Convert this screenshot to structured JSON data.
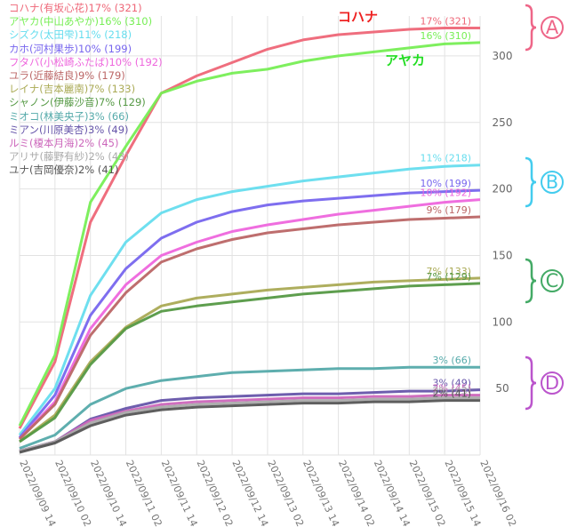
{
  "chart_data": {
    "type": "line",
    "x": [
      "2022/09/09 14",
      "2022/09/10 02",
      "2022/09/10 14",
      "2022/09/11 02",
      "2022/09/11 14",
      "2022/09/12 02",
      "2022/09/12 14",
      "2022/09/13 02",
      "2022/09/13 14",
      "2022/09/14 02",
      "2022/09/14 14",
      "2022/09/15 02",
      "2022/09/15 14",
      "2022/09/16 02"
    ],
    "ylim": [
      0,
      330
    ],
    "yticks": [
      50,
      100,
      150,
      200,
      250,
      300
    ],
    "grid": true,
    "series": [
      {
        "legend": "コハナ(有坂心花)17% (321)",
        "end_label": "17% (321)",
        "color": "#ee6677",
        "values": [
          20,
          70,
          175,
          225,
          272,
          285,
          295,
          305,
          312,
          316,
          318,
          320,
          321,
          321
        ]
      },
      {
        "legend": "アヤカ(中山あやか)16% (310)",
        "end_label": "16% (310)",
        "color": "#77ee55",
        "values": [
          22,
          75,
          190,
          232,
          272,
          281,
          287,
          290,
          296,
          300,
          303,
          306,
          309,
          310
        ]
      },
      {
        "legend": "シズク(太田雫)11% (218)",
        "end_label": "11% (218)",
        "color": "#66ddee",
        "values": [
          15,
          50,
          120,
          160,
          182,
          192,
          198,
          202,
          206,
          209,
          212,
          215,
          217,
          218
        ]
      },
      {
        "legend": "カホ(河村果歩)10% (199)",
        "end_label": "10% (199)",
        "color": "#7766ee",
        "values": [
          13,
          45,
          105,
          140,
          163,
          175,
          183,
          188,
          191,
          193,
          195,
          197,
          198,
          199
        ]
      },
      {
        "legend": "フタバ(小松崎ふたば)10% (192)",
        "end_label": "10% (192)",
        "color": "#ee66dd",
        "values": [
          12,
          40,
          95,
          128,
          150,
          160,
          168,
          173,
          177,
          181,
          184,
          187,
          190,
          192
        ]
      },
      {
        "legend": "ユラ(近藤結良)9% (179)",
        "end_label": "9% (179)",
        "color": "#bb6666",
        "values": [
          12,
          38,
          90,
          122,
          145,
          155,
          162,
          167,
          170,
          173,
          175,
          177,
          178,
          179
        ]
      },
      {
        "legend": "レイナ(吉本麗南)7% (133)",
        "end_label": "7% (133)",
        "color": "#aaaa55",
        "values": [
          10,
          30,
          70,
          96,
          112,
          118,
          121,
          124,
          126,
          128,
          130,
          131,
          132,
          133
        ]
      },
      {
        "legend": "シャノン(伊藤沙音)7% (129)",
        "end_label": "7% (129)",
        "color": "#559944",
        "values": [
          10,
          28,
          68,
          95,
          108,
          112,
          115,
          118,
          121,
          123,
          125,
          127,
          128,
          129
        ]
      },
      {
        "legend": "ミオコ(林美央子)3% (66)",
        "end_label": "3% (66)",
        "color": "#55aaaa",
        "values": [
          5,
          15,
          38,
          50,
          56,
          59,
          62,
          63,
          64,
          65,
          65,
          66,
          66,
          66
        ]
      },
      {
        "legend": "ミアン(川原美杏)3% (49)",
        "end_label": "3% (49)",
        "color": "#6655aa",
        "values": [
          3,
          10,
          27,
          35,
          41,
          43,
          44,
          45,
          46,
          46,
          47,
          48,
          48,
          49
        ]
      },
      {
        "legend": "ルミ(榎本月海)2% (45)",
        "end_label": "2% (45)",
        "color": "#cc66bb",
        "values": [
          3,
          10,
          26,
          33,
          38,
          40,
          41,
          42,
          43,
          43,
          44,
          44,
          45,
          45
        ]
      },
      {
        "legend": "アリサ(藤野有紗)2% (43)",
        "end_label": "2% (43)",
        "color": "#aaaaaa",
        "values": [
          3,
          10,
          24,
          32,
          36,
          38,
          39,
          40,
          41,
          41,
          42,
          42,
          43,
          43
        ]
      },
      {
        "legend": "ユナ(吉岡優奈)2% (41)",
        "end_label": "2% (41)",
        "color": "#555555",
        "values": [
          2,
          9,
          22,
          30,
          34,
          36,
          37,
          38,
          39,
          39,
          40,
          40,
          41,
          41
        ]
      }
    ],
    "callouts": [
      {
        "text": "コハナ",
        "color": "#ee2222"
      },
      {
        "text": "アヤカ",
        "color": "#22dd22"
      }
    ],
    "groups": [
      {
        "label": "A",
        "color": "#ee6688"
      },
      {
        "label": "B",
        "color": "#44ccee"
      },
      {
        "label": "C",
        "color": "#44aa66"
      },
      {
        "label": "D",
        "color": "#bb55cc"
      }
    ]
  }
}
